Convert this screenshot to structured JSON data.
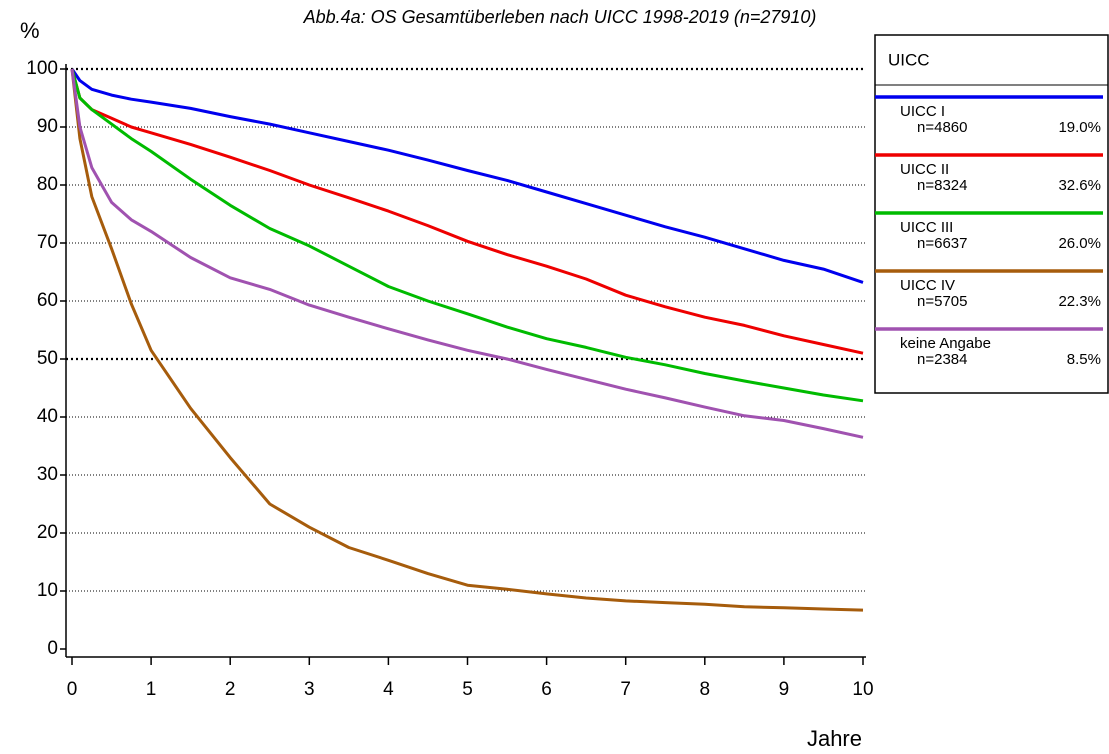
{
  "chart_data": {
    "type": "line",
    "title": "Abb.4a: OS Gesamtüberleben nach UICC  1998-2019 (n=27910)",
    "ylabel": "%",
    "xlabel": "Jahre",
    "legend_title": "UICC",
    "legend_position": "right",
    "grid": true,
    "emphasized_gridlines": [
      50,
      100
    ],
    "xlim": [
      0,
      10
    ],
    "xticks": [
      0,
      1,
      2,
      3,
      4,
      5,
      6,
      7,
      8,
      9,
      10
    ],
    "ylim": [
      0,
      100
    ],
    "yticks": [
      0,
      10,
      20,
      30,
      40,
      50,
      60,
      70,
      80,
      90,
      100
    ],
    "x": [
      0,
      0.1,
      0.25,
      0.5,
      0.75,
      1,
      1.5,
      2,
      2.5,
      3,
      3.5,
      4,
      4.5,
      5,
      5.5,
      6,
      6.5,
      7,
      7.5,
      8,
      8.5,
      9,
      9.5,
      10
    ],
    "series": [
      {
        "name": "UICC I",
        "count_label": "n=4860",
        "share_label": "19.0%",
        "color": "#0000ee",
        "values": [
          100,
          98,
          96.5,
          95.5,
          94.8,
          94.3,
          93.2,
          91.8,
          90.5,
          89,
          87.5,
          86,
          84.3,
          82.5,
          80.8,
          78.8,
          76.8,
          74.8,
          72.8,
          71,
          69,
          67,
          65.5,
          63.2
        ]
      },
      {
        "name": "UICC II",
        "count_label": "n=8324",
        "share_label": "32.6%",
        "color": "#ee0000",
        "values": [
          100,
          95,
          93,
          91.5,
          90,
          89,
          87,
          84.8,
          82.5,
          80,
          77.8,
          75.5,
          73,
          70.3,
          68,
          66,
          63.8,
          61,
          59,
          57.2,
          55.8,
          54,
          52.5,
          51
        ]
      },
      {
        "name": "UICC III",
        "count_label": "n=6637",
        "share_label": "26.0%",
        "color": "#00bb00",
        "values": [
          100,
          95,
          93,
          90.5,
          88,
          85.8,
          81,
          76.5,
          72.5,
          69.5,
          66,
          62.5,
          60,
          57.8,
          55.5,
          53.5,
          52,
          50.3,
          49,
          47.5,
          46.2,
          45,
          43.8,
          42.8
        ]
      },
      {
        "name": "UICC IV",
        "count_label": "n=5705",
        "share_label": "22.3%",
        "color": "#a65c0c",
        "values": [
          100,
          88,
          78,
          69,
          59.5,
          51.5,
          41.5,
          33,
          25,
          21,
          17.5,
          15.3,
          13,
          11,
          10.3,
          9.5,
          8.8,
          8.3,
          8,
          7.7,
          7.3,
          7.1,
          6.9,
          6.7
        ]
      },
      {
        "name": "keine Angabe",
        "count_label": "n=2384",
        "share_label": "8.5%",
        "color": "#a052b0",
        "values": [
          100,
          90,
          83,
          77,
          74,
          72,
          67.5,
          64,
          62,
          59.3,
          57.2,
          55.2,
          53.3,
          51.5,
          50,
          48.2,
          46.5,
          44.8,
          43.3,
          41.7,
          40.2,
          39.4,
          38,
          36.5
        ]
      }
    ]
  }
}
